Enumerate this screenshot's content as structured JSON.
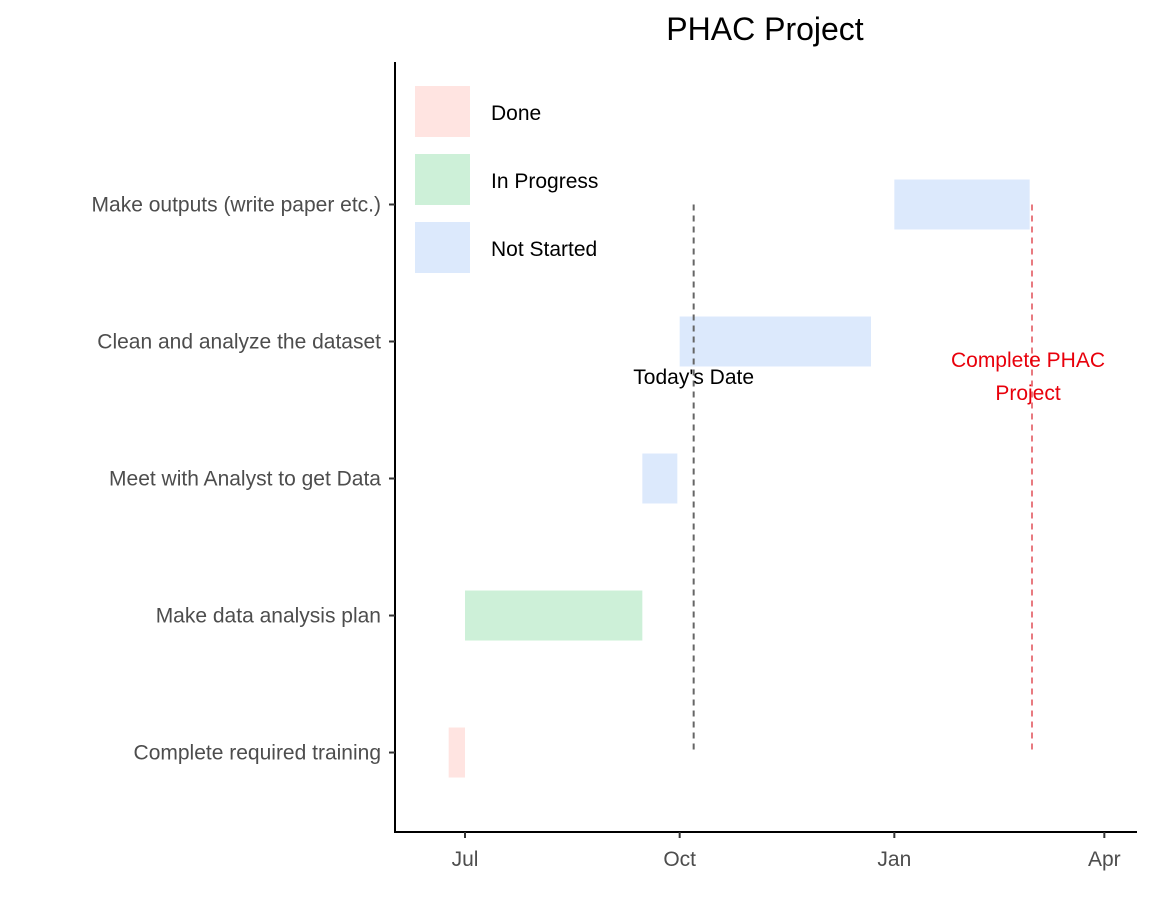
{
  "chart_data": {
    "type": "gantt",
    "title": "PHAC Project",
    "xlabel": "",
    "ylabel": "",
    "x_range": [
      "2020-06-01",
      "2021-04-15"
    ],
    "x_ticks": [
      {
        "date": "2020-07-01",
        "label": "Jul"
      },
      {
        "date": "2020-10-01",
        "label": "Oct"
      },
      {
        "date": "2021-01-01",
        "label": "Jan"
      },
      {
        "date": "2021-04-01",
        "label": "Apr"
      }
    ],
    "tasks": [
      {
        "name": "Complete required training",
        "start": "2020-06-24",
        "end": "2020-07-01",
        "status": "Done"
      },
      {
        "name": "Make data analysis plan",
        "start": "2020-07-01",
        "end": "2020-09-15",
        "status": "In Progress"
      },
      {
        "name": "Meet with Analyst to get Data",
        "start": "2020-09-15",
        "end": "2020-09-30",
        "status": "Not Started"
      },
      {
        "name": "Clean and analyze the dataset",
        "start": "2020-10-01",
        "end": "2020-12-22",
        "status": "Not Started"
      },
      {
        "name": "Make outputs (write paper etc.)",
        "start": "2021-01-01",
        "end": "2021-02-28",
        "status": "Not Started"
      }
    ],
    "legend": {
      "position": "top-left",
      "entries": [
        {
          "label": "Done",
          "color": "#ffe4e1"
        },
        {
          "label": "In Progress",
          "color": "#cdf0d8"
        },
        {
          "label": "Not Started",
          "color": "#dce9fc"
        }
      ]
    },
    "annotations": [
      {
        "date": "2020-10-07",
        "label": "Today's Date",
        "color": "#000000",
        "line_color": "#666666"
      },
      {
        "date": "2021-03-01",
        "label_lines": [
          "Complete PHAC",
          "Project"
        ],
        "color": "#e8000b",
        "line_color": "#e87a80"
      }
    ],
    "grid": false
  }
}
